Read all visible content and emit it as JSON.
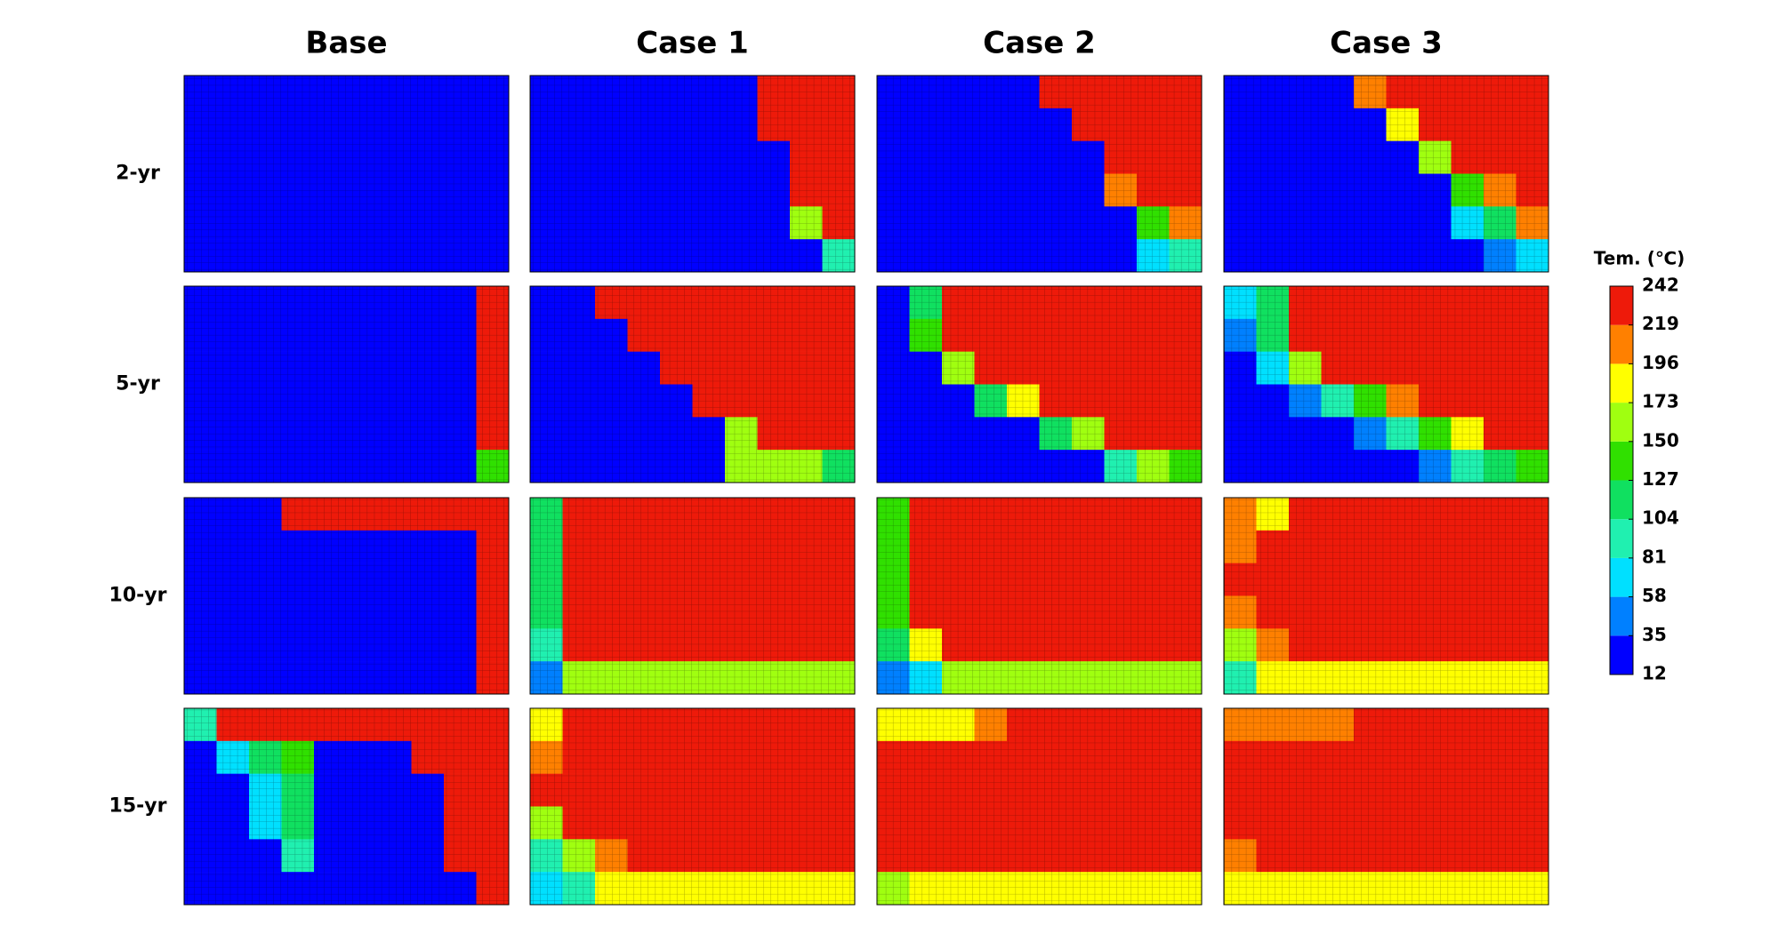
{
  "chart_data": {
    "type": "heatmap-grid",
    "columns": [
      "Base",
      "Case 1",
      "Case 2",
      "Case 3"
    ],
    "rows": [
      "2-yr",
      "5-yr",
      "10-yr",
      "15-yr"
    ],
    "colorbar": {
      "title": "Tem. (℃)",
      "ticks": [
        12,
        35,
        58,
        81,
        104,
        127,
        150,
        173,
        196,
        219,
        242
      ],
      "colors": [
        "#0000ff",
        "#0080ff",
        "#00e0ff",
        "#20f0b0",
        "#10e060",
        "#30e000",
        "#a0ff10",
        "#ffff00",
        "#ff8000",
        "#ee1a0a"
      ]
    },
    "panels": [
      [
        [
          12,
          12,
          12,
          12,
          12,
          12,
          12,
          12,
          12,
          12
        ],
        [
          12,
          12,
          12,
          12,
          12,
          12,
          12,
          12,
          12,
          12
        ],
        [
          12,
          12,
          12,
          12,
          12,
          12,
          12,
          12,
          12,
          12
        ],
        [
          12,
          12,
          12,
          12,
          12,
          12,
          12,
          12,
          12,
          12
        ],
        [
          12,
          12,
          12,
          12,
          12,
          12,
          12,
          12,
          12,
          12
        ],
        [
          12,
          12,
          12,
          12,
          12,
          12,
          12,
          12,
          12,
          12
        ]
      ],
      [
        [
          12,
          12,
          12,
          12,
          12,
          12,
          12,
          242,
          242,
          242
        ],
        [
          12,
          12,
          12,
          12,
          12,
          12,
          12,
          242,
          242,
          242
        ],
        [
          12,
          12,
          12,
          12,
          12,
          12,
          12,
          12,
          242,
          242
        ],
        [
          12,
          12,
          12,
          12,
          12,
          12,
          12,
          12,
          242,
          242
        ],
        [
          12,
          12,
          12,
          12,
          12,
          12,
          12,
          12,
          150,
          242
        ],
        [
          12,
          12,
          12,
          12,
          12,
          12,
          12,
          12,
          12,
          81
        ]
      ],
      [
        [
          12,
          12,
          12,
          12,
          12,
          242,
          242,
          242,
          242,
          242
        ],
        [
          12,
          12,
          12,
          12,
          12,
          12,
          242,
          242,
          242,
          242
        ],
        [
          12,
          12,
          12,
          12,
          12,
          12,
          12,
          242,
          242,
          242
        ],
        [
          12,
          12,
          12,
          12,
          12,
          12,
          12,
          196,
          242,
          242
        ],
        [
          12,
          12,
          12,
          12,
          12,
          12,
          12,
          12,
          127,
          196
        ],
        [
          12,
          12,
          12,
          12,
          12,
          12,
          12,
          12,
          58,
          81
        ]
      ],
      [
        [
          12,
          12,
          12,
          12,
          196,
          242,
          242,
          242,
          242,
          242
        ],
        [
          12,
          12,
          12,
          12,
          12,
          173,
          242,
          242,
          242,
          242
        ],
        [
          12,
          12,
          12,
          12,
          12,
          12,
          150,
          242,
          242,
          242
        ],
        [
          12,
          12,
          12,
          12,
          12,
          12,
          12,
          127,
          196,
          242
        ],
        [
          12,
          12,
          12,
          12,
          12,
          12,
          12,
          58,
          104,
          196
        ],
        [
          12,
          12,
          12,
          12,
          12,
          12,
          12,
          12,
          35,
          58
        ]
      ],
      [
        [
          12,
          12,
          12,
          12,
          12,
          12,
          12,
          12,
          12,
          242
        ],
        [
          12,
          12,
          12,
          12,
          12,
          12,
          12,
          12,
          12,
          242
        ],
        [
          12,
          12,
          12,
          12,
          12,
          12,
          12,
          12,
          12,
          242
        ],
        [
          12,
          12,
          12,
          12,
          12,
          12,
          12,
          12,
          12,
          242
        ],
        [
          12,
          12,
          12,
          12,
          12,
          12,
          12,
          12,
          12,
          242
        ],
        [
          12,
          12,
          12,
          12,
          12,
          12,
          12,
          12,
          12,
          127
        ]
      ],
      [
        [
          12,
          12,
          242,
          242,
          242,
          242,
          242,
          242,
          242,
          242
        ],
        [
          12,
          12,
          12,
          242,
          242,
          242,
          242,
          242,
          242,
          242
        ],
        [
          12,
          12,
          12,
          12,
          242,
          242,
          242,
          242,
          242,
          242
        ],
        [
          12,
          12,
          12,
          12,
          12,
          242,
          242,
          242,
          242,
          242
        ],
        [
          12,
          12,
          12,
          12,
          12,
          12,
          150,
          242,
          242,
          242
        ],
        [
          12,
          12,
          12,
          12,
          12,
          12,
          150,
          150,
          150,
          104
        ]
      ],
      [
        [
          12,
          104,
          242,
          242,
          242,
          242,
          242,
          242,
          242,
          242
        ],
        [
          12,
          127,
          242,
          242,
          242,
          242,
          242,
          242,
          242,
          242
        ],
        [
          12,
          12,
          150,
          242,
          242,
          242,
          242,
          242,
          242,
          242
        ],
        [
          12,
          12,
          12,
          104,
          173,
          242,
          242,
          242,
          242,
          242
        ],
        [
          12,
          12,
          12,
          12,
          12,
          104,
          150,
          242,
          242,
          242
        ],
        [
          12,
          12,
          12,
          12,
          12,
          12,
          12,
          81,
          150,
          127
        ]
      ],
      [
        [
          58,
          104,
          242,
          242,
          242,
          242,
          242,
          242,
          242,
          242
        ],
        [
          35,
          104,
          242,
          242,
          242,
          242,
          242,
          242,
          242,
          242
        ],
        [
          12,
          58,
          150,
          242,
          242,
          242,
          242,
          242,
          242,
          242
        ],
        [
          12,
          12,
          35,
          81,
          127,
          196,
          242,
          242,
          242,
          242
        ],
        [
          12,
          12,
          12,
          12,
          35,
          81,
          127,
          173,
          242,
          242
        ],
        [
          12,
          12,
          12,
          12,
          12,
          12,
          35,
          81,
          104,
          127
        ]
      ],
      [
        [
          12,
          12,
          12,
          242,
          242,
          242,
          242,
          242,
          242,
          242
        ],
        [
          12,
          12,
          12,
          12,
          12,
          12,
          12,
          12,
          12,
          242
        ],
        [
          12,
          12,
          12,
          12,
          12,
          12,
          12,
          12,
          12,
          242
        ],
        [
          12,
          12,
          12,
          12,
          12,
          12,
          12,
          12,
          12,
          242
        ],
        [
          12,
          12,
          12,
          12,
          12,
          12,
          12,
          12,
          12,
          242
        ],
        [
          12,
          12,
          12,
          12,
          12,
          12,
          12,
          12,
          12,
          242
        ]
      ],
      [
        [
          104,
          242,
          242,
          242,
          242,
          242,
          242,
          242,
          242,
          242
        ],
        [
          104,
          242,
          242,
          242,
          242,
          242,
          242,
          242,
          242,
          242
        ],
        [
          104,
          242,
          242,
          242,
          242,
          242,
          242,
          242,
          242,
          242
        ],
        [
          104,
          242,
          242,
          242,
          242,
          242,
          242,
          242,
          242,
          242
        ],
        [
          81,
          242,
          242,
          242,
          242,
          242,
          242,
          242,
          242,
          242
        ],
        [
          35,
          150,
          150,
          150,
          150,
          150,
          150,
          150,
          150,
          150
        ]
      ],
      [
        [
          127,
          242,
          242,
          242,
          242,
          242,
          242,
          242,
          242,
          242
        ],
        [
          127,
          242,
          242,
          242,
          242,
          242,
          242,
          242,
          242,
          242
        ],
        [
          127,
          242,
          242,
          242,
          242,
          242,
          242,
          242,
          242,
          242
        ],
        [
          127,
          242,
          242,
          242,
          242,
          242,
          242,
          242,
          242,
          242
        ],
        [
          104,
          173,
          242,
          242,
          242,
          242,
          242,
          242,
          242,
          242
        ],
        [
          35,
          58,
          150,
          150,
          150,
          150,
          150,
          150,
          150,
          150
        ]
      ],
      [
        [
          196,
          173,
          242,
          242,
          242,
          242,
          242,
          242,
          242,
          242
        ],
        [
          196,
          242,
          242,
          242,
          242,
          242,
          242,
          242,
          242,
          242
        ],
        [
          242,
          242,
          242,
          242,
          242,
          242,
          242,
          242,
          242,
          242
        ],
        [
          196,
          242,
          242,
          242,
          242,
          242,
          242,
          242,
          242,
          242
        ],
        [
          150,
          196,
          242,
          242,
          242,
          242,
          242,
          242,
          242,
          242
        ],
        [
          81,
          173,
          173,
          173,
          173,
          173,
          173,
          173,
          173,
          173
        ]
      ],
      [
        [
          81,
          242,
          242,
          242,
          242,
          242,
          242,
          242,
          242,
          242
        ],
        [
          12,
          58,
          104,
          127,
          12,
          12,
          12,
          242,
          242,
          242
        ],
        [
          12,
          12,
          58,
          104,
          12,
          12,
          12,
          12,
          242,
          242
        ],
        [
          12,
          12,
          58,
          104,
          12,
          12,
          12,
          12,
          242,
          242
        ],
        [
          12,
          12,
          12,
          81,
          12,
          12,
          12,
          12,
          242,
          242
        ],
        [
          12,
          12,
          12,
          12,
          12,
          12,
          12,
          12,
          12,
          242
        ]
      ],
      [
        [
          173,
          242,
          242,
          242,
          242,
          242,
          242,
          242,
          242,
          242
        ],
        [
          196,
          242,
          242,
          242,
          242,
          242,
          242,
          242,
          242,
          242
        ],
        [
          242,
          242,
          242,
          242,
          242,
          242,
          242,
          242,
          242,
          242
        ],
        [
          150,
          242,
          242,
          242,
          242,
          242,
          242,
          242,
          242,
          242
        ],
        [
          81,
          150,
          196,
          242,
          242,
          242,
          242,
          242,
          242,
          242
        ],
        [
          58,
          81,
          173,
          173,
          173,
          173,
          173,
          173,
          173,
          173
        ]
      ],
      [
        [
          173,
          173,
          173,
          196,
          242,
          242,
          242,
          242,
          242,
          242
        ],
        [
          242,
          242,
          242,
          242,
          242,
          242,
          242,
          242,
          242,
          242
        ],
        [
          242,
          242,
          242,
          242,
          242,
          242,
          242,
          242,
          242,
          242
        ],
        [
          242,
          242,
          242,
          242,
          242,
          242,
          242,
          242,
          242,
          242
        ],
        [
          242,
          242,
          242,
          242,
          242,
          242,
          242,
          242,
          242,
          242
        ],
        [
          150,
          173,
          173,
          173,
          173,
          173,
          173,
          173,
          173,
          173
        ]
      ],
      [
        [
          196,
          196,
          196,
          196,
          242,
          242,
          242,
          242,
          242,
          242
        ],
        [
          242,
          242,
          242,
          242,
          242,
          242,
          242,
          242,
          242,
          242
        ],
        [
          242,
          242,
          242,
          242,
          242,
          242,
          242,
          242,
          242,
          242
        ],
        [
          242,
          242,
          242,
          242,
          242,
          242,
          242,
          242,
          242,
          242
        ],
        [
          196,
          242,
          242,
          242,
          242,
          242,
          242,
          242,
          242,
          242
        ],
        [
          173,
          173,
          173,
          173,
          173,
          173,
          173,
          173,
          173,
          173
        ]
      ]
    ]
  }
}
